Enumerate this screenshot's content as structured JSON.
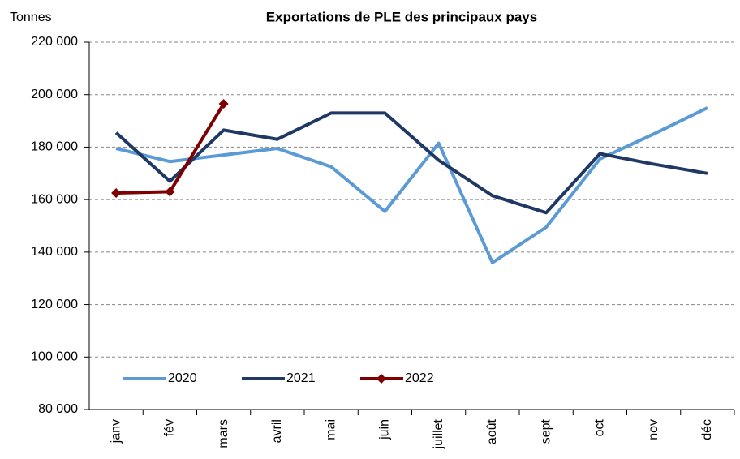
{
  "chart_data": {
    "type": "line",
    "title": "Exportations de PLE des principaux pays",
    "y_label": "Tonnes",
    "categories": [
      "janv",
      "fév",
      "mars",
      "avril",
      "mai",
      "juin",
      "juillet",
      "août",
      "sept",
      "oct",
      "nov",
      "déc"
    ],
    "series": [
      {
        "name": "2020",
        "color": "#5b9bd5",
        "marker": false,
        "values": [
          179500,
          174500,
          177000,
          179500,
          172500,
          155500,
          181500,
          136000,
          149500,
          175500,
          185000,
          195000
        ]
      },
      {
        "name": "2021",
        "color": "#1f3864",
        "marker": false,
        "values": [
          185500,
          167000,
          186500,
          183000,
          193000,
          193000,
          175000,
          161500,
          155000,
          177500,
          173500,
          170000
        ]
      },
      {
        "name": "2022",
        "color": "#7f0000",
        "marker": true,
        "values": [
          162500,
          163000,
          196500,
          null,
          null,
          null,
          null,
          null,
          null,
          null,
          null,
          null
        ]
      }
    ],
    "ylim": [
      80000,
      220000
    ],
    "yticks": [
      {
        "value": 80000,
        "label": "80 000"
      },
      {
        "value": 100000,
        "label": "100 000"
      },
      {
        "value": 120000,
        "label": "120 000"
      },
      {
        "value": 140000,
        "label": "140 000"
      },
      {
        "value": 160000,
        "label": "160 000"
      },
      {
        "value": 180000,
        "label": "180 000"
      },
      {
        "value": 200000,
        "label": "200 000"
      },
      {
        "value": 220000,
        "label": "220 000"
      }
    ],
    "grid": true,
    "legend": "bottom-left"
  }
}
